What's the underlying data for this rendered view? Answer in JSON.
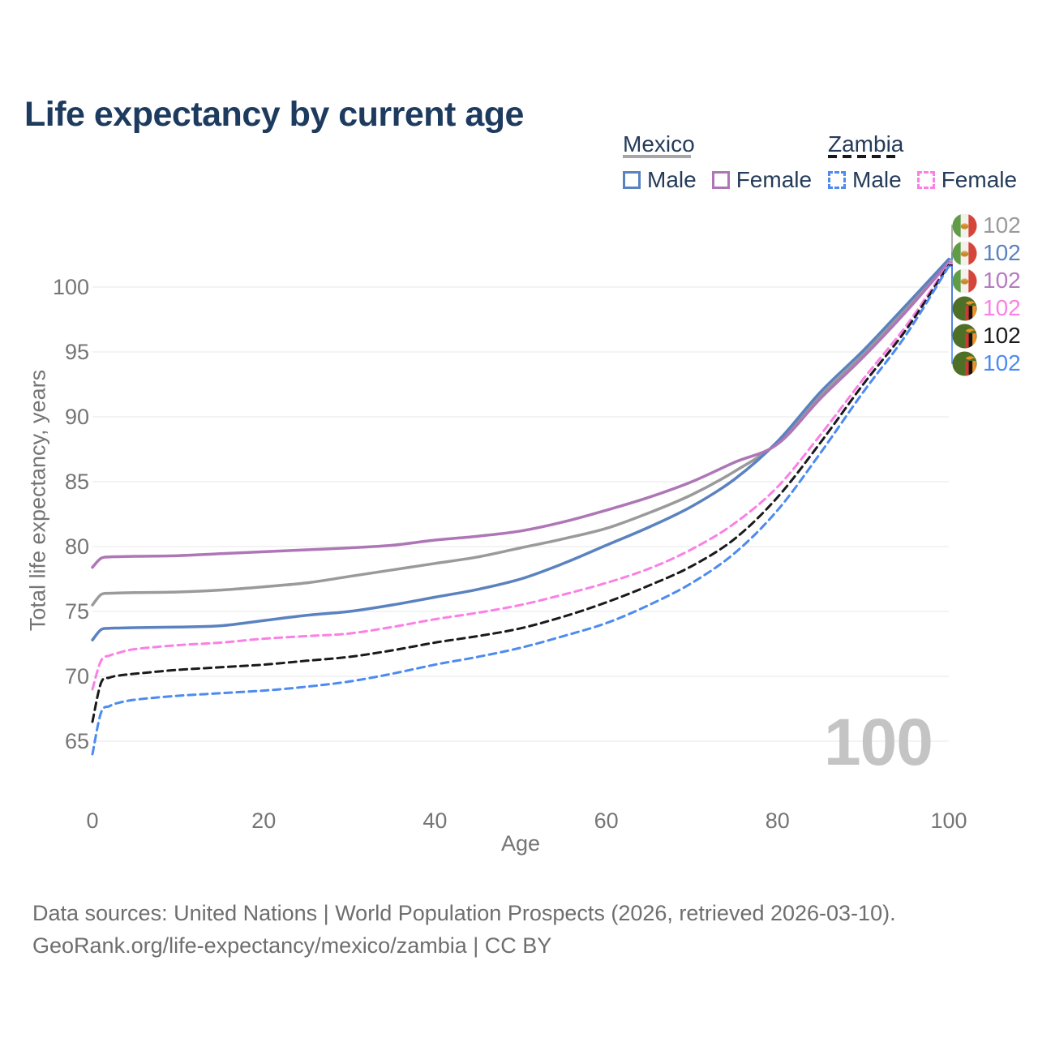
{
  "title": "Life expectancy by current age",
  "watermark": "100",
  "legend": {
    "mexico": {
      "label": "Mexico",
      "male_label": "Male",
      "female_label": "Female"
    },
    "zambia": {
      "label": "Zambia",
      "male_label": "Male",
      "female_label": "Female"
    }
  },
  "end_labels": [
    {
      "flag": "mexico-flag",
      "series": "mexico-both",
      "value": "102",
      "color": "#9a9a9a"
    },
    {
      "flag": "mexico-flag",
      "series": "mexico-male",
      "value": "102",
      "color": "#5b82c0"
    },
    {
      "flag": "mexico-flag",
      "series": "mexico-female",
      "value": "102",
      "color": "#b57bc0"
    },
    {
      "flag": "zambia-flag",
      "series": "zambia-female",
      "value": "102",
      "color": "#fb80e5"
    },
    {
      "flag": "zambia-flag",
      "series": "zambia-both",
      "value": "102",
      "color": "#1a1a1a"
    },
    {
      "flag": "zambia-flag",
      "series": "zambia-male",
      "value": "102",
      "color": "#4d8bf0"
    }
  ],
  "footer": {
    "line1": "Data sources: United Nations | World Population Prospects (2026, retrieved 2026-03-10).",
    "line2": "GeoRank.org/life-expectancy/mexico/zambia | CC BY"
  },
  "chart_data": {
    "type": "line",
    "title": "Life expectancy by current age",
    "xlabel": "Age",
    "ylabel": "Total life expectancy, years",
    "xlim": [
      0,
      100
    ],
    "ylim": [
      63,
      103
    ],
    "x_ticks": [
      0,
      20,
      40,
      60,
      80,
      100
    ],
    "y_ticks": [
      65,
      70,
      75,
      80,
      85,
      90,
      95,
      100
    ],
    "grid": "horizontal",
    "legend_position": "top-right",
    "x": [
      0,
      1,
      2,
      3,
      5,
      10,
      15,
      20,
      25,
      30,
      35,
      40,
      45,
      50,
      55,
      60,
      65,
      70,
      75,
      80,
      85,
      90,
      95,
      100
    ],
    "series": [
      {
        "key": "mexico-both",
        "name": "Mexico — Both sexes",
        "color": "#9a9a9a",
        "dashed": false,
        "values": [
          75.5,
          76.3,
          76.4,
          76.42,
          76.45,
          76.5,
          76.65,
          76.9,
          77.2,
          77.7,
          78.2,
          78.7,
          79.2,
          79.9,
          80.6,
          81.4,
          82.6,
          84.0,
          85.8,
          88.0,
          91.6,
          94.8,
          98.3,
          102.0
        ]
      },
      {
        "key": "mexico-male",
        "name": "Mexico — Male",
        "color": "#5b82c0",
        "dashed": false,
        "values": [
          72.8,
          73.6,
          73.7,
          73.72,
          73.75,
          73.8,
          73.9,
          74.3,
          74.7,
          75.0,
          75.5,
          76.1,
          76.7,
          77.5,
          78.7,
          80.1,
          81.5,
          83.1,
          85.2,
          88.1,
          91.9,
          95.1,
          98.6,
          102.15
        ]
      },
      {
        "key": "mexico-female",
        "name": "Mexico — Female",
        "color": "#ae76b6",
        "dashed": false,
        "values": [
          78.4,
          79.1,
          79.2,
          79.22,
          79.25,
          79.3,
          79.45,
          79.6,
          79.75,
          79.9,
          80.1,
          80.5,
          80.8,
          81.2,
          81.9,
          82.8,
          83.8,
          85.0,
          86.5,
          87.9,
          91.4,
          94.6,
          98.1,
          101.9
        ]
      },
      {
        "key": "zambia-female",
        "name": "Zambia — Female",
        "color": "#fb80e5",
        "dashed": true,
        "values": [
          69.0,
          71.2,
          71.6,
          71.8,
          72.1,
          72.4,
          72.6,
          72.9,
          73.1,
          73.3,
          73.8,
          74.4,
          74.9,
          75.5,
          76.3,
          77.2,
          78.3,
          79.8,
          81.8,
          84.6,
          88.6,
          92.9,
          97.0,
          101.8
        ]
      },
      {
        "key": "zambia-both",
        "name": "Zambia — Both sexes",
        "color": "#1a1a1a",
        "dashed": true,
        "values": [
          66.5,
          69.5,
          69.9,
          70.05,
          70.2,
          70.5,
          70.7,
          70.9,
          71.2,
          71.5,
          72.0,
          72.6,
          73.1,
          73.7,
          74.6,
          75.7,
          77.0,
          78.5,
          80.6,
          83.8,
          88.0,
          92.5,
          96.7,
          101.7
        ]
      },
      {
        "key": "zambia-male",
        "name": "Zambia — Male",
        "color": "#4d8bf0",
        "dashed": true,
        "values": [
          64.0,
          67.2,
          67.7,
          67.95,
          68.2,
          68.5,
          68.7,
          68.9,
          69.2,
          69.6,
          70.2,
          70.9,
          71.5,
          72.2,
          73.1,
          74.1,
          75.5,
          77.2,
          79.5,
          82.8,
          87.2,
          91.9,
          96.3,
          101.6
        ]
      }
    ],
    "end_value": 102
  }
}
